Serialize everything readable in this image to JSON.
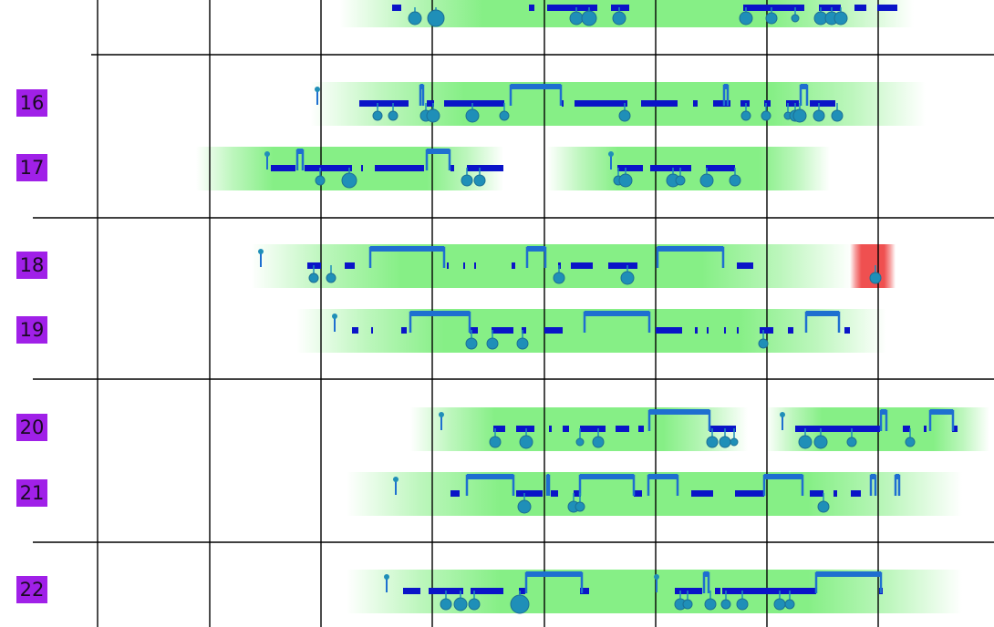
{
  "rows": [
    {
      "id": "row-16",
      "label": "16",
      "highlight": null
    },
    {
      "id": "row-17",
      "label": "17",
      "highlight": null
    },
    {
      "id": "row-18",
      "label": "18",
      "highlight": "error"
    },
    {
      "id": "row-19",
      "label": "19",
      "highlight": null
    },
    {
      "id": "row-20",
      "label": "20",
      "highlight": null
    },
    {
      "id": "row-21",
      "label": "21",
      "highlight": null
    },
    {
      "id": "row-22",
      "label": "22",
      "highlight": null
    }
  ],
  "colors": {
    "background": "#ffffff",
    "grid_line": "#000000",
    "row_label_bg": "#a020e8",
    "activity_band": "#86ef86",
    "activity_bar": "#0a14c8",
    "activity_bracket": "#1e6fd0",
    "event_marker": "#1f8fb8",
    "error_band": "#ef5050"
  },
  "icons": {
    "event_marker": "circle-marker-icon",
    "start_marker": "pin-marker-icon"
  }
}
